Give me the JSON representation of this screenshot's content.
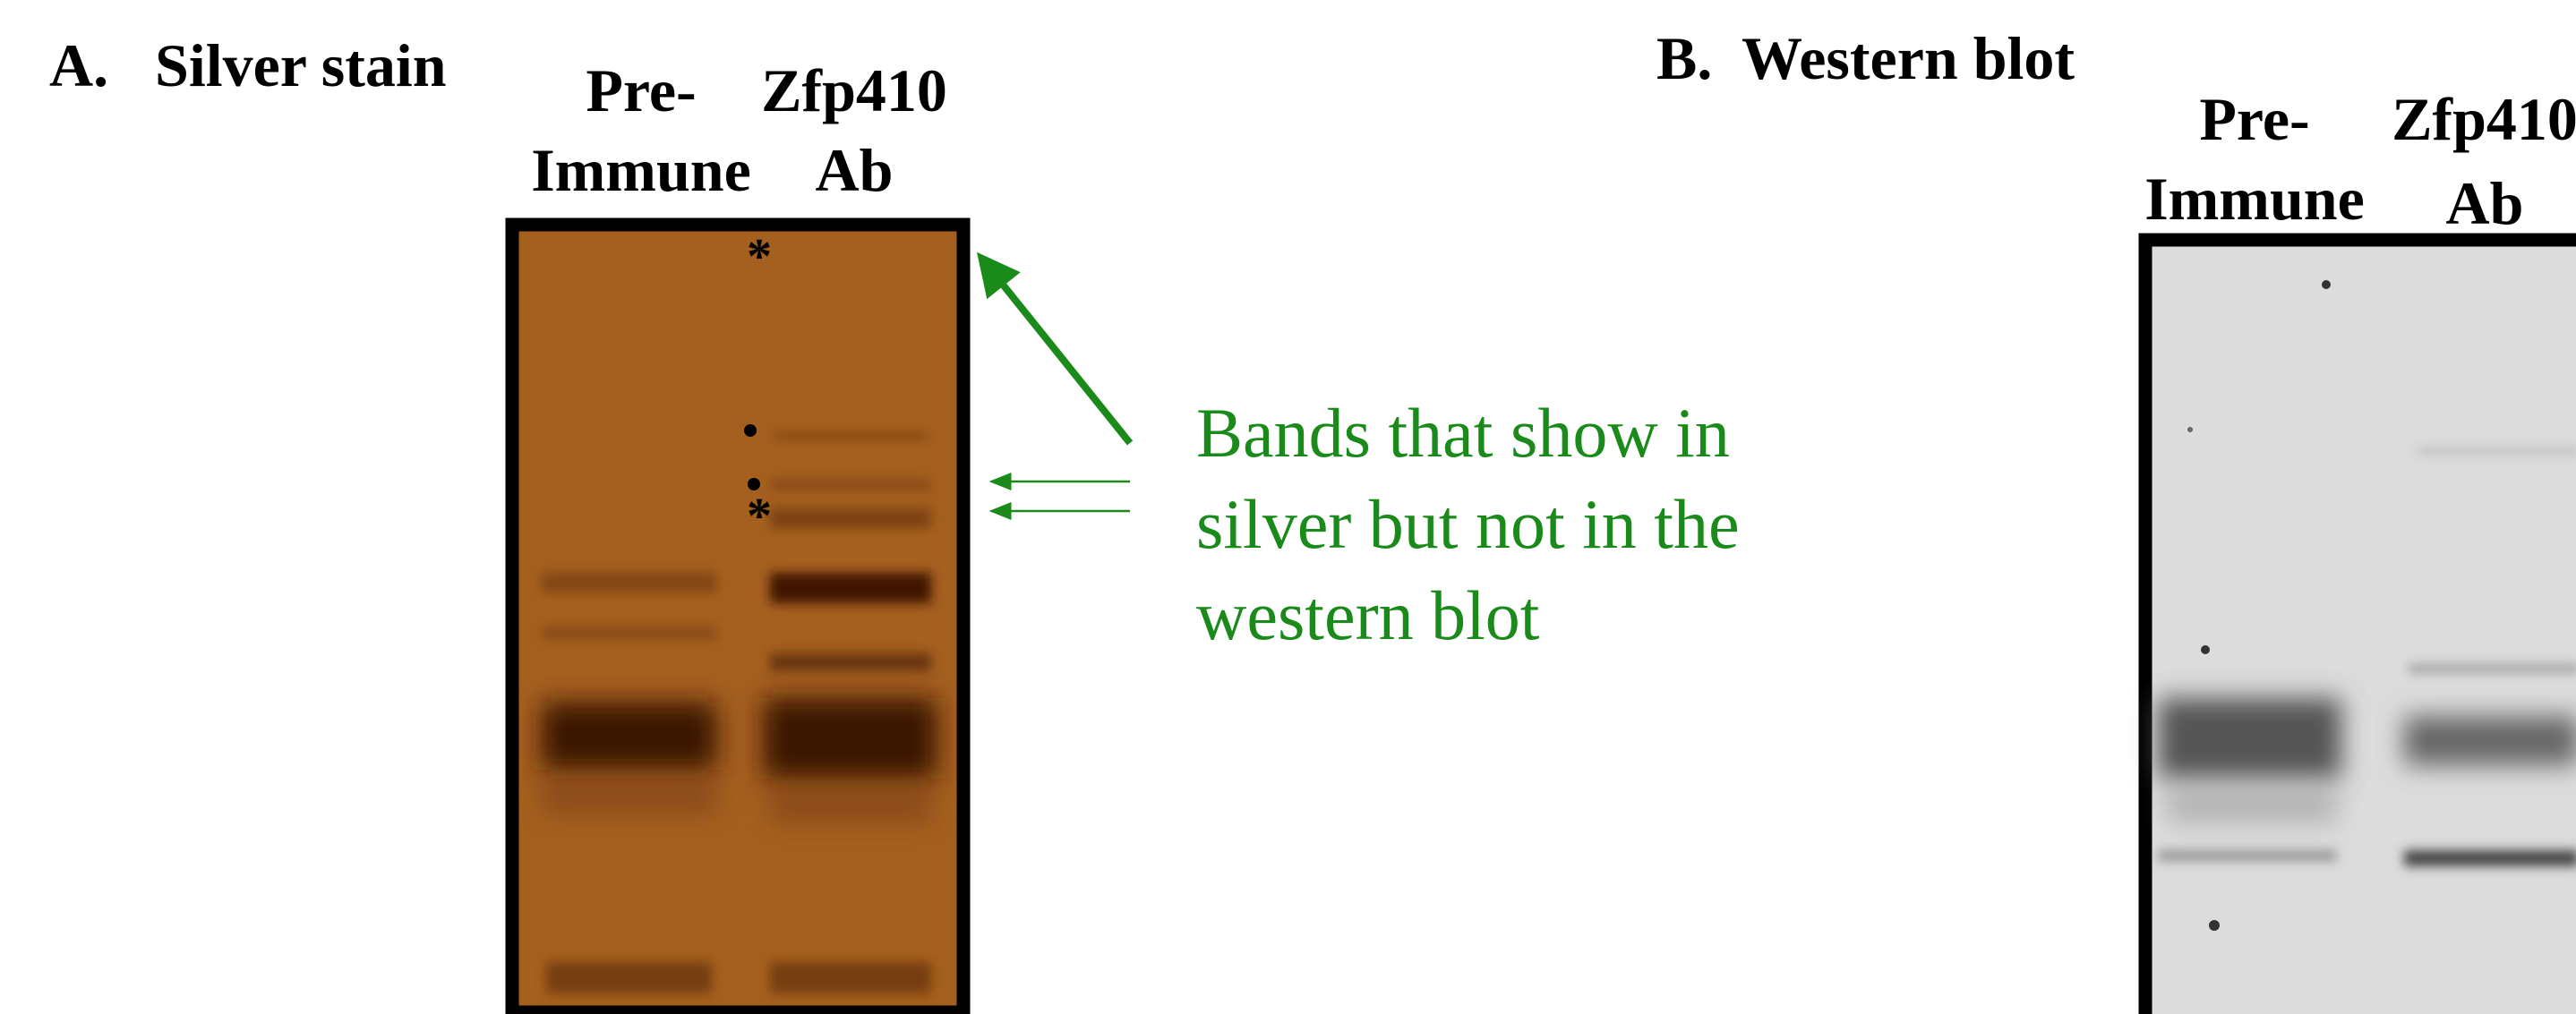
{
  "panel_a": {
    "label": "A.",
    "title": "Silver stain",
    "lanes": [
      {
        "line1": "Pre-",
        "line2": "Immune"
      },
      {
        "line1": "Zfp410",
        "line2": "Ab"
      }
    ]
  },
  "annotation": {
    "lines": [
      "Bands that show in",
      "silver but not in the",
      "western blot"
    ]
  },
  "panel_b": {
    "label": "B.",
    "title": "Western blot",
    "lanes": [
      {
        "line1": "Pre-",
        "line2": "Immune"
      },
      {
        "line1": "Zfp410",
        "line2": "Ab"
      }
    ]
  }
}
